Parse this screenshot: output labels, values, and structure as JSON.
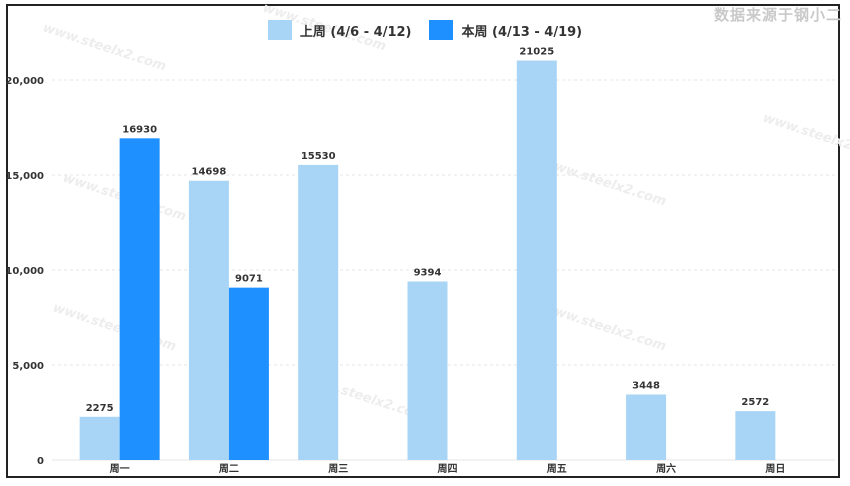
{
  "brand_watermark": "数据来源于钢小二",
  "watermark_text": "www.steelx2.com",
  "chart_data": {
    "type": "bar",
    "categories": [
      "周一",
      "周二",
      "周三",
      "周四",
      "周五",
      "周六",
      "周日"
    ],
    "series": [
      {
        "name": "上周 (4/6 - 4/12)",
        "color": "#a8d4f5",
        "values": [
          2275,
          14698,
          15530,
          9394,
          21025,
          3448,
          2572
        ]
      },
      {
        "name": "本周 (4/13 - 4/19)",
        "color": "#1e90ff",
        "values": [
          16930,
          9071,
          null,
          null,
          null,
          null,
          null
        ]
      }
    ],
    "yticks": [
      "0",
      "5,000",
      "10,000",
      "15,000",
      "20,000"
    ],
    "ylim": [
      0,
      20000
    ],
    "grid": true,
    "legend_position": "top-center",
    "title": "",
    "xlabel": "",
    "ylabel": ""
  }
}
